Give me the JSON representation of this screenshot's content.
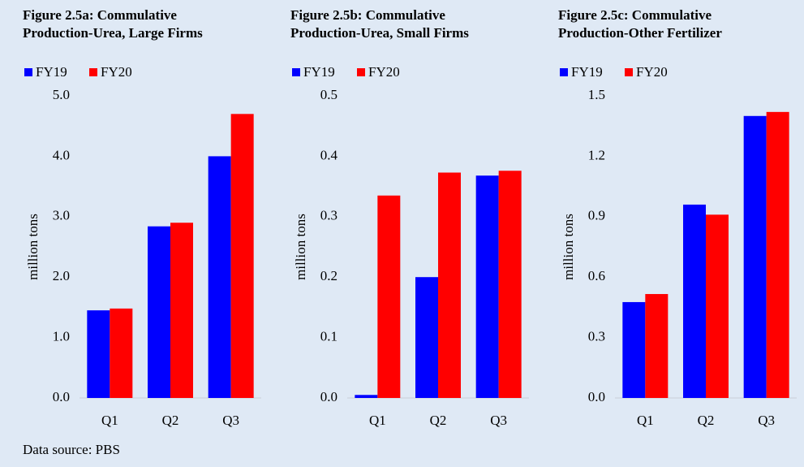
{
  "chart_data": [
    {
      "type": "bar",
      "title": "Figure 2.5a: Commulative",
      "subtitle": "Production-Urea, Large Firms",
      "y_label": "million tons",
      "categories": [
        "Q1",
        "Q2",
        "Q3"
      ],
      "series": [
        {
          "name": "FY19",
          "color": "#0000ff",
          "values": [
            1.45,
            2.84,
            4.0
          ]
        },
        {
          "name": "FY20",
          "color": "#ff0000",
          "values": [
            1.48,
            2.9,
            4.7
          ]
        }
      ],
      "ylim": [
        0,
        5
      ],
      "yticks": [
        {
          "value": 0,
          "label": "0.0"
        },
        {
          "value": 1,
          "label": "1.0"
        },
        {
          "value": 2,
          "label": "2.0"
        },
        {
          "value": 3,
          "label": "3.0"
        },
        {
          "value": 4,
          "label": "4.0"
        },
        {
          "value": 5,
          "label": "5.0"
        }
      ]
    },
    {
      "type": "bar",
      "title": "Figure 2.5b: Commulative",
      "subtitle": "Production-Urea, Small Firms",
      "y_label": "million tons",
      "categories": [
        "Q1",
        "Q2",
        "Q3"
      ],
      "series": [
        {
          "name": "FY19",
          "color": "#0000ff",
          "values": [
            0.005,
            0.2,
            0.368
          ]
        },
        {
          "name": "FY20",
          "color": "#ff0000",
          "values": [
            0.335,
            0.373,
            0.376
          ]
        }
      ],
      "ylim": [
        0,
        0.5
      ],
      "yticks": [
        {
          "value": 0,
          "label": "0.0"
        },
        0.1,
        0.2,
        0.3,
        0.4,
        0.5
      ]
    },
    {
      "type": "bar",
      "title": "Figure 2.5c: Commulative",
      "subtitle": "Production-Other Fertilizer",
      "y_label": "million tons",
      "categories": [
        "Q1",
        "Q2",
        "Q3"
      ],
      "series": [
        {
          "name": "FY19",
          "color": "#0000ff",
          "values": [
            0.476,
            0.96,
            1.4
          ]
        },
        {
          "name": "FY20",
          "color": "#ff0000",
          "values": [
            0.516,
            0.91,
            1.42
          ]
        }
      ],
      "ylim": [
        0,
        1.5
      ],
      "yticks": [
        {
          "value": 0,
          "label": "0.0"
        },
        0.3,
        0.6,
        0.9,
        1.2,
        1.5
      ]
    }
  ],
  "source": "Data source: PBS"
}
